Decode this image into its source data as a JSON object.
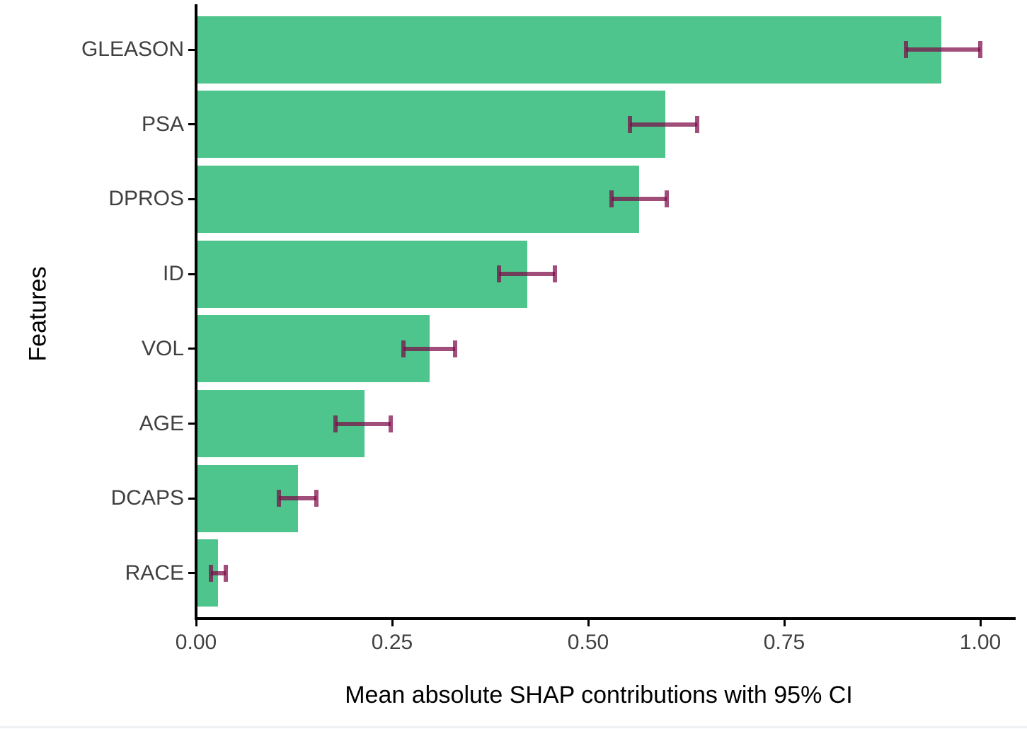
{
  "chart_data": {
    "type": "bar",
    "orientation": "horizontal",
    "title": "",
    "xlabel": "Mean absolute SHAP contributions with 95% CI",
    "ylabel": "Features",
    "categories": [
      "GLEASON",
      "PSA",
      "DPROS",
      "ID",
      "VOL",
      "AGE",
      "DCAPS",
      "RACE"
    ],
    "values": [
      0.95,
      0.598,
      0.565,
      0.422,
      0.298,
      0.215,
      0.13,
      0.028
    ],
    "ci_low": [
      0.905,
      0.553,
      0.53,
      0.386,
      0.264,
      0.178,
      0.106,
      0.019
    ],
    "ci_high": [
      1.0,
      0.639,
      0.6,
      0.458,
      0.33,
      0.248,
      0.153,
      0.038
    ],
    "error_bar_label": "95% CI",
    "xticks": [
      0.0,
      0.25,
      0.5,
      0.75,
      1.0
    ],
    "xtick_labels": [
      "0.00",
      "0.25",
      "0.50",
      "0.75",
      "1.00"
    ],
    "xlim": [
      0.0,
      1.04
    ],
    "grid": false,
    "legend": "none",
    "bar_color": "#4DC58C",
    "errorbar_color": "rgba(125,10,70,0.72)",
    "axis_color": "#000000",
    "tick_label_color": "#404040",
    "axis_title_color": "#000000"
  }
}
